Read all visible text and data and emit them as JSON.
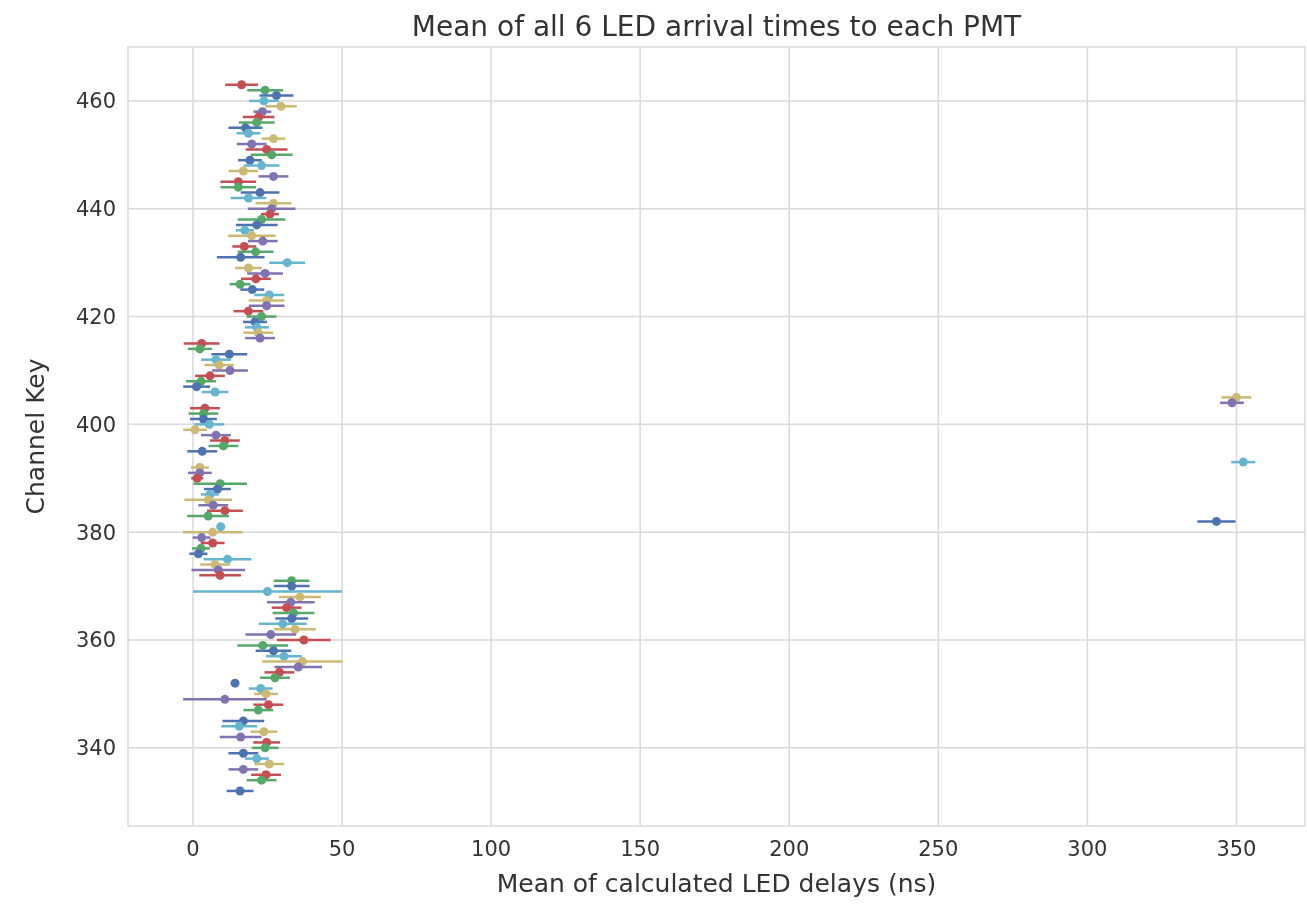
{
  "chart_data": {
    "type": "scatter",
    "title": "Mean of all 6 LED arrival times to each PMT",
    "xlabel": "Mean of calculated LED delays (ns)",
    "ylabel": "Channel Key",
    "xlim": [
      -21.8,
      373
    ],
    "ylim": [
      325.5,
      470
    ],
    "xticks": [
      0,
      50,
      100,
      150,
      200,
      250,
      300,
      350
    ],
    "yticks": [
      340,
      360,
      380,
      400,
      420,
      440,
      460
    ],
    "grid": true,
    "marker": "circle",
    "series": [
      {
        "x": [
          16.3,
          24.2,
          28,
          23.8,
          29.5,
          23.3,
          22,
          21.4,
          17.6,
          18.6,
          27,
          19.7,
          24.7,
          26.4,
          19.1,
          23,
          16.9,
          27,
          15.2,
          15.2,
          22.5,
          18.6,
          27,
          26.4,
          25.8,
          23,
          21.4,
          17.4,
          19.7,
          23.4,
          17.2,
          21,
          16,
          31.6,
          18.6,
          24.2,
          21.1,
          15.8,
          19.9,
          25.6,
          24.7,
          24.7,
          18.6,
          23,
          20.8,
          21.4,
          21.9,
          22.5,
          2.9,
          2.3,
          12.2,
          7.7,
          8.8,
          12.4,
          5.7,
          2.7,
          1.2,
          7.4,
          350,
          348.5,
          4,
          3.5,
          3.5,
          5.5,
          0.7,
          7.7,
          10.7,
          10.2,
          3.1,
          352.3,
          2.3,
          2.3,
          1.4,
          9.1,
          8.2,
          5.7,
          5.1,
          6.8,
          10.7,
          5.1,
          343.3,
          9.3,
          6.6,
          2.9,
          6.6,
          2.7,
          1.8,
          11.6,
          7.4,
          8.5,
          9.1,
          33.1,
          33.1,
          25,
          35.9,
          32.8,
          31.4,
          33.7,
          33.1,
          30.1,
          34.2,
          26.1,
          37.2,
          23.4,
          27,
          30.5,
          36.7,
          35.3,
          29,
          27.5,
          14.1,
          22.7,
          24.5,
          10.7,
          25.3,
          21.9,
          16.9,
          15.5,
          23.8,
          16,
          24.7,
          24.2,
          16.9,
          21.4,
          25.6,
          16.9,
          24.5,
          23,
          15.8
        ],
        "values": [
          463,
          462,
          461,
          460,
          459,
          458,
          457,
          456,
          455,
          454,
          453,
          452,
          451,
          450,
          449,
          448,
          447,
          446,
          445,
          444,
          443,
          442,
          441,
          440,
          439,
          438,
          437,
          436,
          435,
          434,
          433,
          432,
          431,
          430,
          429,
          428,
          427,
          426,
          425,
          424,
          423,
          422,
          421,
          420,
          419,
          418,
          417,
          416,
          415,
          414,
          413,
          412,
          411,
          410,
          409,
          408,
          407,
          406,
          405,
          404,
          403,
          402,
          401,
          400,
          399,
          398,
          397,
          396,
          395,
          393,
          392,
          391,
          390,
          389,
          388,
          387,
          386,
          385,
          384,
          383,
          382,
          381,
          380,
          379,
          378,
          377,
          376,
          375,
          374,
          373,
          372,
          371,
          370,
          369,
          368,
          367,
          366,
          365,
          364,
          363,
          362,
          361,
          360,
          359,
          358,
          357,
          356,
          355,
          354,
          353,
          352,
          351,
          350,
          349,
          348,
          347,
          345,
          344,
          343,
          342,
          341,
          340,
          339,
          338,
          337,
          336,
          335,
          334,
          332
        ],
        "xerrors": [
          5.5,
          6,
          5.7,
          5,
          5.3,
          3,
          5.3,
          6,
          5.7,
          4,
          4,
          5,
          7,
          7,
          4,
          6,
          5,
          5,
          6,
          6,
          6.5,
          6,
          6,
          8,
          3,
          8,
          7,
          3,
          8,
          5,
          4,
          6,
          8,
          6,
          4.5,
          6,
          5,
          3.5,
          4,
          5,
          6,
          6,
          5,
          5,
          4,
          4,
          5,
          5,
          6,
          4,
          6,
          5,
          5,
          6,
          5,
          5,
          4.5,
          4.5,
          5,
          4,
          5,
          5,
          4.5,
          5,
          4,
          5,
          5,
          5,
          5,
          4,
          3,
          4,
          2,
          9,
          4.5,
          3,
          8,
          5,
          6,
          7,
          6.4,
          1,
          10,
          3,
          4,
          3,
          3,
          8,
          5,
          9,
          7,
          6,
          6,
          25,
          7,
          8,
          5,
          7,
          5.5,
          8,
          7,
          8.5,
          9,
          8.5,
          6,
          6,
          13.5,
          8,
          5,
          5,
          0.5,
          4,
          4,
          14,
          5,
          5,
          7,
          6,
          4.5,
          7,
          4.5,
          4.5,
          5,
          4,
          5,
          5,
          5,
          5,
          4.5
        ],
        "colors": [
          "#c44e52",
          "#55a868",
          "#4c72b0",
          "#64b5cd",
          "#ccb974",
          "#8172b2",
          "#c44e52",
          "#55a868",
          "#4c72b0",
          "#64b5cd",
          "#ccb974",
          "#8172b2",
          "#c44e52",
          "#55a868",
          "#4c72b0",
          "#64b5cd",
          "#ccb974",
          "#8172b2",
          "#c44e52",
          "#55a868",
          "#4c72b0",
          "#64b5cd",
          "#ccb974",
          "#8172b2",
          "#c44e52",
          "#55a868",
          "#4c72b0",
          "#64b5cd",
          "#ccb974",
          "#8172b2",
          "#c44e52",
          "#55a868",
          "#4c72b0",
          "#64b5cd",
          "#ccb974",
          "#8172b2",
          "#c44e52",
          "#55a868",
          "#4c72b0",
          "#64b5cd",
          "#ccb974",
          "#8172b2",
          "#c44e52",
          "#55a868",
          "#4c72b0",
          "#64b5cd",
          "#ccb974",
          "#8172b2",
          "#c44e52",
          "#55a868",
          "#4c72b0",
          "#64b5cd",
          "#ccb974",
          "#8172b2",
          "#c44e52",
          "#55a868",
          "#4c72b0",
          "#64b5cd",
          "#ccb974",
          "#8172b2",
          "#c44e52",
          "#55a868",
          "#4c72b0",
          "#64b5cd",
          "#ccb974",
          "#8172b2",
          "#c44e52",
          "#55a868",
          "#4c72b0",
          "#64b5cd",
          "#ccb974",
          "#8172b2",
          "#c44e52",
          "#55a868",
          "#4c72b0",
          "#64b5cd",
          "#ccb974",
          "#8172b2",
          "#c44e52",
          "#55a868",
          "#4c72b0",
          "#64b5cd",
          "#ccb974",
          "#8172b2",
          "#c44e52",
          "#55a868",
          "#4c72b0",
          "#64b5cd",
          "#ccb974",
          "#8172b2",
          "#c44e52",
          "#55a868",
          "#4c72b0",
          "#64b5cd",
          "#ccb974",
          "#8172b2",
          "#c44e52",
          "#55a868",
          "#4c72b0",
          "#64b5cd",
          "#ccb974",
          "#8172b2",
          "#c44e52",
          "#55a868",
          "#4c72b0",
          "#64b5cd",
          "#ccb974",
          "#8172b2",
          "#c44e52",
          "#55a868",
          "#4c72b0",
          "#64b5cd",
          "#ccb974",
          "#8172b2",
          "#c44e52",
          "#55a868",
          "#4c72b0",
          "#64b5cd",
          "#ccb974",
          "#8172b2",
          "#c44e52",
          "#55a868",
          "#4c72b0",
          "#64b5cd",
          "#ccb974",
          "#8172b2",
          "#c44e52",
          "#55a868",
          "#4c72b0"
        ]
      }
    ]
  }
}
